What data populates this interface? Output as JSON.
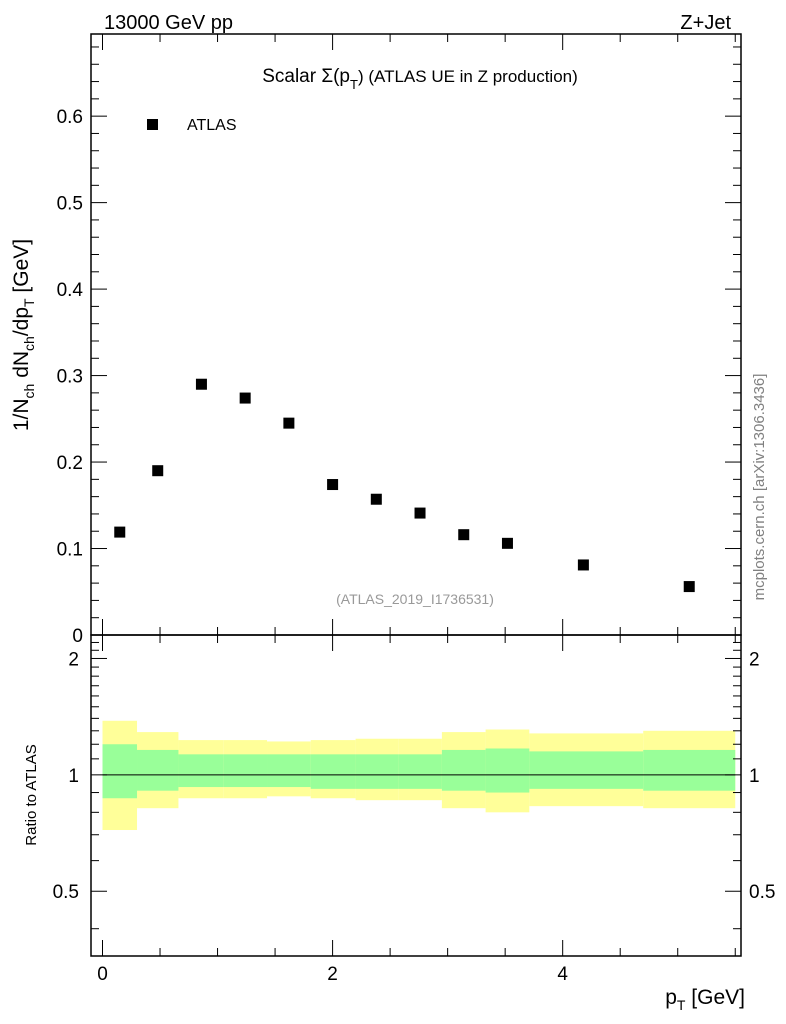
{
  "header": {
    "energy_label": "13000 GeV pp",
    "process_label": "Z+Jet"
  },
  "side_label": "mcplots.cern.ch [arXiv:1306.3436]",
  "colors": {
    "marker": "#000000",
    "band_outer": "#ffff99",
    "band_inner": "#99ff99",
    "frame": "#000000",
    "watermark": "#999999"
  },
  "chart_data": [
    {
      "type": "scatter",
      "title_prefix": "Scalar Σ(p",
      "title_sub": "T",
      "title_suffix": ") (ATLAS UE in Z production)",
      "watermark": "(ATLAS_2019_I1736531)",
      "legend": [
        {
          "name": "ATLAS",
          "marker": "square"
        }
      ],
      "ylabel": "1/N_ch dN_ch/dp_T [GeV]",
      "ylabel_parts": {
        "a": "1/N",
        "a_sub": "ch",
        "b": " dN",
        "b_sub": "ch",
        "c": "/dp",
        "c_sub": "T",
        "d": " [GeV]"
      },
      "xlim": [
        -0.1,
        5.55
      ],
      "ylim": [
        0,
        0.695
      ],
      "yticks": [
        {
          "v": 0,
          "label": "0"
        },
        {
          "v": 0.1,
          "label": "0.1"
        },
        {
          "v": 0.2,
          "label": "0.2"
        },
        {
          "v": 0.3,
          "label": "0.3"
        },
        {
          "v": 0.4,
          "label": "0.4"
        },
        {
          "v": 0.5,
          "label": "0.5"
        },
        {
          "v": 0.6,
          "label": "0.6"
        }
      ],
      "series": [
        {
          "name": "ATLAS",
          "x": [
            0.15,
            0.48,
            0.86,
            1.24,
            1.62,
            2.0,
            2.38,
            2.76,
            3.14,
            3.52,
            4.18,
            5.1
          ],
          "values": [
            0.119,
            0.19,
            0.29,
            0.274,
            0.245,
            0.174,
            0.157,
            0.141,
            0.116,
            0.106,
            0.081,
            0.056
          ]
        }
      ]
    },
    {
      "type": "area",
      "ylabel": "Ratio to ATLAS",
      "xlabel": "p_T [GeV]",
      "xlabel_parts": {
        "a": "p",
        "a_sub": "T",
        "b": " [GeV]"
      },
      "xlim": [
        -0.1,
        5.55
      ],
      "ylim": [
        0.34,
        2.3
      ],
      "reference_line": 1.0,
      "xticks": [
        {
          "v": 0,
          "label": "0"
        },
        {
          "v": 2,
          "label": "2"
        },
        {
          "v": 4,
          "label": "4"
        }
      ],
      "yticks": [
        {
          "v": 0.5,
          "label": "0.5"
        },
        {
          "v": 1,
          "label": "1"
        },
        {
          "v": 2,
          "label": "2"
        }
      ],
      "bin_edges": [
        0.0,
        0.3,
        0.66,
        1.05,
        1.43,
        1.81,
        2.2,
        2.57,
        2.95,
        3.33,
        3.71,
        4.7,
        5.5
      ],
      "inner_band": {
        "low": [
          0.87,
          0.91,
          0.93,
          0.93,
          0.93,
          0.92,
          0.92,
          0.92,
          0.91,
          0.9,
          0.92,
          0.91
        ],
        "high": [
          1.2,
          1.16,
          1.13,
          1.13,
          1.13,
          1.13,
          1.13,
          1.13,
          1.16,
          1.17,
          1.15,
          1.16
        ]
      },
      "outer_band": {
        "low": [
          0.72,
          0.82,
          0.87,
          0.87,
          0.88,
          0.87,
          0.86,
          0.86,
          0.82,
          0.8,
          0.83,
          0.82
        ],
        "high": [
          1.38,
          1.29,
          1.23,
          1.23,
          1.22,
          1.23,
          1.24,
          1.24,
          1.29,
          1.31,
          1.28,
          1.3
        ]
      }
    }
  ]
}
